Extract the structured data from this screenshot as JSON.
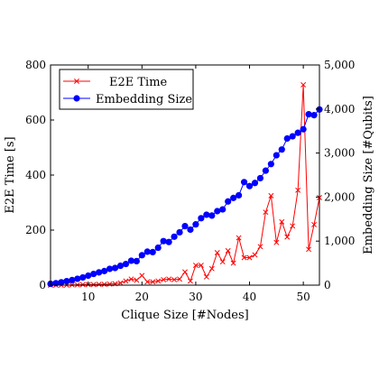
{
  "chart_data": {
    "type": "line",
    "xlabel": "Clique Size [#Nodes]",
    "ylabel_left": "E2E Time [s]",
    "ylabel_right": "Embedding Size [#Qubits]",
    "x_ticks": [
      10,
      20,
      30,
      40,
      50
    ],
    "y_left_ticks": [
      0,
      200,
      400,
      600,
      800
    ],
    "y_right_ticks": [
      0,
      1000,
      2000,
      3000,
      4000,
      5000
    ],
    "y_right_tick_labels": [
      "0",
      "1,000",
      "2,000",
      "3,000",
      "4,000",
      "5,000"
    ],
    "xlim": [
      3,
      53
    ],
    "ylim_left": [
      0,
      800
    ],
    "ylim_right": [
      0,
      5000
    ],
    "legend_position": "top-left",
    "grid": false,
    "series": [
      {
        "name": "E2E Time",
        "axis": "left",
        "color": "#ff0000",
        "marker": "x",
        "x": [
          3,
          4,
          5,
          6,
          7,
          8,
          9,
          10,
          11,
          12,
          13,
          14,
          15,
          16,
          17,
          18,
          19,
          20,
          21,
          22,
          23,
          24,
          25,
          26,
          27,
          28,
          29,
          30,
          31,
          32,
          33,
          34,
          35,
          36,
          37,
          38,
          39,
          40,
          41,
          42,
          43,
          44,
          45,
          46,
          47,
          48,
          49,
          50,
          51,
          52,
          53
        ],
        "values": [
          0,
          0,
          0,
          0,
          1,
          1,
          2,
          2,
          2,
          3,
          3,
          4,
          5,
          8,
          15,
          22,
          18,
          35,
          12,
          12,
          15,
          20,
          22,
          20,
          22,
          48,
          15,
          72,
          72,
          30,
          60,
          118,
          85,
          125,
          80,
          172,
          100,
          100,
          110,
          140,
          265,
          325,
          155,
          230,
          175,
          215,
          345,
          728,
          130,
          220,
          318
        ]
      },
      {
        "name": "Embedding Size",
        "axis": "right",
        "color": "#0000ff",
        "marker": "circle",
        "x": [
          3,
          4,
          5,
          6,
          7,
          8,
          9,
          10,
          11,
          12,
          13,
          14,
          15,
          16,
          17,
          18,
          19,
          20,
          21,
          22,
          23,
          24,
          25,
          26,
          27,
          28,
          29,
          30,
          31,
          32,
          33,
          34,
          35,
          36,
          37,
          38,
          39,
          40,
          41,
          42,
          43,
          44,
          45,
          46,
          47,
          48,
          49,
          50,
          51,
          52,
          53
        ],
        "values": [
          30,
          45,
          65,
          90,
          115,
          145,
          175,
          215,
          255,
          290,
          320,
          370,
          390,
          440,
          480,
          555,
          545,
          680,
          760,
          750,
          850,
          1000,
          980,
          1100,
          1200,
          1340,
          1260,
          1380,
          1520,
          1600,
          1580,
          1680,
          1720,
          1900,
          1980,
          2040,
          2340,
          2250,
          2320,
          2430,
          2600,
          2750,
          2950,
          3080,
          3330,
          3380,
          3460,
          3540,
          3880,
          3860,
          3990
        ]
      }
    ]
  }
}
